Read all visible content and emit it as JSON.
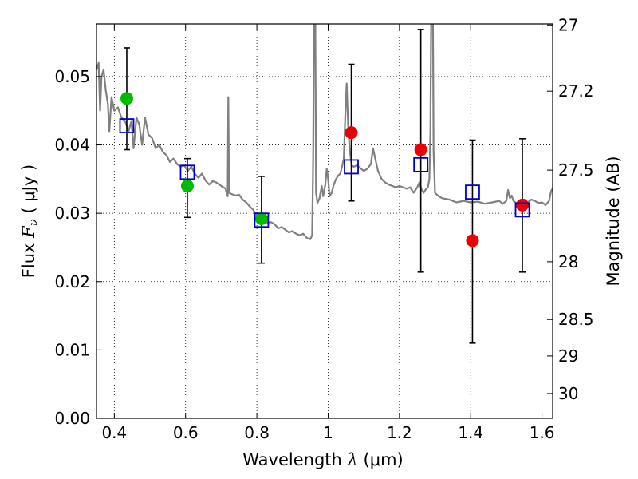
{
  "chart_data": {
    "type": "scatter",
    "xlabel_prefix": "Wavelength",
    "xlabel_symbol": "λ",
    "xlabel_unit": "(μm)",
    "ylabel_prefix": "Flux",
    "ylabel_symbol": "F",
    "ylabel_subscript": "ν",
    "ylabel_unit": "( μJy )",
    "y2label": "Magnitude (AB)",
    "xlim": [
      0.35,
      1.63
    ],
    "ylim": [
      0.0,
      0.0577
    ],
    "grid": true,
    "x_ticks": [
      {
        "value": 0.4,
        "label": "0.4"
      },
      {
        "value": 0.6,
        "label": "0.6"
      },
      {
        "value": 0.8,
        "label": "0.8"
      },
      {
        "value": 1.0,
        "label": "1"
      },
      {
        "value": 1.2,
        "label": "1.2"
      },
      {
        "value": 1.4,
        "label": "1.4"
      },
      {
        "value": 1.6,
        "label": "1.6"
      }
    ],
    "y_ticks": [
      {
        "value": 0.0,
        "label": "0.00"
      },
      {
        "value": 0.01,
        "label": "0.01"
      },
      {
        "value": 0.02,
        "label": "0.02"
      },
      {
        "value": 0.03,
        "label": "0.03"
      },
      {
        "value": 0.04,
        "label": "0.04"
      },
      {
        "value": 0.05,
        "label": "0.05"
      }
    ],
    "y2_ticks": [
      {
        "mag": 27,
        "label": "27"
      },
      {
        "mag": 27.2,
        "label": "27.2"
      },
      {
        "mag": 27.5,
        "label": "27.5"
      },
      {
        "mag": 28,
        "label": "28"
      },
      {
        "mag": 28.5,
        "label": "28.5"
      },
      {
        "mag": 29,
        "label": "29"
      },
      {
        "mag": 30,
        "label": "30"
      }
    ],
    "model_spectrum": {
      "color": "#808080",
      "points": [
        [
          0.35,
          0.051
        ],
        [
          0.356,
          0.052
        ],
        [
          0.36,
          0.045
        ],
        [
          0.364,
          0.05
        ],
        [
          0.37,
          0.051
        ],
        [
          0.376,
          0.048
        ],
        [
          0.382,
          0.046
        ],
        [
          0.386,
          0.042
        ],
        [
          0.392,
          0.047
        ],
        [
          0.4,
          0.045
        ],
        [
          0.41,
          0.0455
        ],
        [
          0.42,
          0.044
        ],
        [
          0.43,
          0.0435
        ],
        [
          0.44,
          0.042
        ],
        [
          0.448,
          0.0435
        ],
        [
          0.454,
          0.0395
        ],
        [
          0.462,
          0.044
        ],
        [
          0.47,
          0.043
        ],
        [
          0.478,
          0.04
        ],
        [
          0.486,
          0.044
        ],
        [
          0.496,
          0.0415
        ],
        [
          0.506,
          0.041
        ],
        [
          0.516,
          0.0395
        ],
        [
          0.526,
          0.04
        ],
        [
          0.536,
          0.039
        ],
        [
          0.546,
          0.0385
        ],
        [
          0.556,
          0.0375
        ],
        [
          0.566,
          0.038
        ],
        [
          0.576,
          0.0372
        ],
        [
          0.586,
          0.0368
        ],
        [
          0.596,
          0.037
        ],
        [
          0.606,
          0.0362
        ],
        [
          0.616,
          0.0368
        ],
        [
          0.626,
          0.0358
        ],
        [
          0.636,
          0.0352
        ],
        [
          0.646,
          0.0358
        ],
        [
          0.656,
          0.0348
        ],
        [
          0.666,
          0.0342
        ],
        [
          0.676,
          0.0347
        ],
        [
          0.686,
          0.0345
        ],
        [
          0.7,
          0.034
        ],
        [
          0.712,
          0.0336
        ],
        [
          0.718,
          0.0325
        ],
        [
          0.72,
          0.047
        ],
        [
          0.722,
          0.033
        ],
        [
          0.73,
          0.0328
        ],
        [
          0.74,
          0.0326
        ],
        [
          0.75,
          0.0327
        ],
        [
          0.76,
          0.032
        ],
        [
          0.77,
          0.0316
        ],
        [
          0.78,
          0.031
        ],
        [
          0.79,
          0.0305
        ],
        [
          0.8,
          0.0296
        ],
        [
          0.81,
          0.029
        ],
        [
          0.82,
          0.029
        ],
        [
          0.83,
          0.0286
        ],
        [
          0.84,
          0.0287
        ],
        [
          0.85,
          0.0284
        ],
        [
          0.86,
          0.0278
        ],
        [
          0.87,
          0.028
        ],
        [
          0.88,
          0.0276
        ],
        [
          0.89,
          0.0272
        ],
        [
          0.9,
          0.0274
        ],
        [
          0.91,
          0.027
        ],
        [
          0.92,
          0.0268
        ],
        [
          0.93,
          0.027
        ],
        [
          0.94,
          0.0264
        ],
        [
          0.95,
          0.0262
        ],
        [
          0.955,
          0.0268
        ],
        [
          0.958,
          0.038
        ],
        [
          0.96,
          0.0577
        ],
        [
          0.964,
          0.0577
        ],
        [
          0.966,
          0.033
        ],
        [
          0.97,
          0.0315
        ],
        [
          0.976,
          0.0322
        ],
        [
          0.982,
          0.034
        ],
        [
          0.986,
          0.0325
        ],
        [
          0.992,
          0.0342
        ],
        [
          0.996,
          0.0365
        ],
        [
          1.0,
          0.035
        ],
        [
          1.004,
          0.0325
        ],
        [
          1.01,
          0.033
        ],
        [
          1.016,
          0.0342
        ],
        [
          1.022,
          0.035
        ],
        [
          1.028,
          0.0355
        ],
        [
          1.034,
          0.0358
        ],
        [
          1.04,
          0.037
        ],
        [
          1.044,
          0.038
        ],
        [
          1.048,
          0.044
        ],
        [
          1.052,
          0.049
        ],
        [
          1.056,
          0.043
        ],
        [
          1.06,
          0.0395
        ],
        [
          1.066,
          0.037
        ],
        [
          1.072,
          0.0368
        ],
        [
          1.08,
          0.037
        ],
        [
          1.09,
          0.0366
        ],
        [
          1.1,
          0.0362
        ],
        [
          1.11,
          0.0365
        ],
        [
          1.12,
          0.0372
        ],
        [
          1.126,
          0.0395
        ],
        [
          1.132,
          0.038
        ],
        [
          1.14,
          0.0362
        ],
        [
          1.15,
          0.035
        ],
        [
          1.16,
          0.0345
        ],
        [
          1.17,
          0.0342
        ],
        [
          1.18,
          0.034
        ],
        [
          1.19,
          0.0338
        ],
        [
          1.2,
          0.034
        ],
        [
          1.21,
          0.0338
        ],
        [
          1.22,
          0.0336
        ],
        [
          1.23,
          0.0338
        ],
        [
          1.24,
          0.033
        ],
        [
          1.25,
          0.0338
        ],
        [
          1.256,
          0.0345
        ],
        [
          1.262,
          0.0335
        ],
        [
          1.268,
          0.033
        ],
        [
          1.274,
          0.0335
        ],
        [
          1.28,
          0.0338
        ],
        [
          1.284,
          0.035
        ],
        [
          1.287,
          0.042
        ],
        [
          1.289,
          0.0577
        ],
        [
          1.294,
          0.0577
        ],
        [
          1.296,
          0.039
        ],
        [
          1.3,
          0.033
        ],
        [
          1.31,
          0.0325
        ],
        [
          1.32,
          0.0322
        ],
        [
          1.34,
          0.032
        ],
        [
          1.36,
          0.0316
        ],
        [
          1.38,
          0.0318
        ],
        [
          1.4,
          0.0316
        ],
        [
          1.42,
          0.0317
        ],
        [
          1.44,
          0.0314
        ],
        [
          1.46,
          0.0316
        ],
        [
          1.48,
          0.0318
        ],
        [
          1.49,
          0.0314
        ],
        [
          1.5,
          0.0318
        ],
        [
          1.505,
          0.0334
        ],
        [
          1.51,
          0.0322
        ],
        [
          1.515,
          0.0326
        ],
        [
          1.52,
          0.0318
        ],
        [
          1.53,
          0.0314
        ],
        [
          1.54,
          0.0318
        ],
        [
          1.55,
          0.032
        ],
        [
          1.56,
          0.0316
        ],
        [
          1.57,
          0.032
        ],
        [
          1.58,
          0.0318
        ],
        [
          1.59,
          0.0315
        ],
        [
          1.6,
          0.0316
        ],
        [
          1.61,
          0.0312
        ],
        [
          1.62,
          0.0318
        ],
        [
          1.626,
          0.0333
        ],
        [
          1.63,
          0.0336
        ]
      ]
    },
    "series": [
      {
        "marker": "square-open",
        "color": "#0000cc",
        "points": [
          {
            "x": 0.435,
            "y": 0.0428,
            "yerr_low": 0.0393,
            "yerr_high": 0.0542
          },
          {
            "x": 0.605,
            "y": 0.036,
            "yerr_low": 0.0294,
            "yerr_high": 0.038
          },
          {
            "x": 0.813,
            "y": 0.029,
            "yerr_low": 0.0227,
            "yerr_high": 0.0354
          },
          {
            "x": 1.065,
            "y": 0.0368,
            "yerr_low": 0.0318,
            "yerr_high": 0.0518
          },
          {
            "x": 1.26,
            "y": 0.0371,
            "yerr_low": 0.0214,
            "yerr_high": 0.0569
          },
          {
            "x": 1.405,
            "y": 0.0331,
            "yerr_low": 0.011,
            "yerr_high": 0.0407
          },
          {
            "x": 1.545,
            "y": 0.0305,
            "yerr_low": 0.0214,
            "yerr_high": 0.0409
          }
        ]
      },
      {
        "marker": "circle",
        "color": "#00bb00",
        "points": [
          {
            "x": 0.435,
            "y": 0.0468
          },
          {
            "x": 0.605,
            "y": 0.034
          },
          {
            "x": 0.813,
            "y": 0.0292
          }
        ]
      },
      {
        "marker": "circle",
        "color": "#ee0000",
        "points": [
          {
            "x": 1.065,
            "y": 0.0418
          },
          {
            "x": 1.26,
            "y": 0.0393
          },
          {
            "x": 1.405,
            "y": 0.026
          },
          {
            "x": 1.545,
            "y": 0.0312
          }
        ]
      }
    ]
  }
}
